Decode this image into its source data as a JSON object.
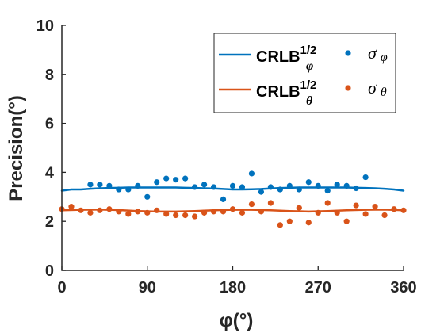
{
  "chart_data": {
    "type": "scatter",
    "xlabel": "φ(°)",
    "ylabel": "Precision(°)",
    "xlim": [
      0,
      360
    ],
    "ylim": [
      0,
      10
    ],
    "x_ticks": [
      0,
      90,
      180,
      270,
      360
    ],
    "y_ticks": [
      0,
      2,
      4,
      6,
      8,
      10
    ],
    "grid": false,
    "legend_position": "top-right",
    "colors": {
      "phi": "#0072BD",
      "theta": "#D95319",
      "axis": "#262626"
    },
    "legend": [
      {
        "kind": "line",
        "base": "CRLB",
        "sup": "1/2",
        "sub": "φ",
        "series": "crlb_phi"
      },
      {
        "kind": "marker",
        "base": "σ",
        "sub": "φ",
        "series": "sigma_phi"
      },
      {
        "kind": "line",
        "base": "CRLB",
        "sup": "1/2",
        "sub": "θ",
        "series": "crlb_theta"
      },
      {
        "kind": "marker",
        "base": "σ",
        "sub": "θ",
        "series": "sigma_theta"
      }
    ],
    "series": {
      "crlb_phi": {
        "style": "line",
        "color": "#0072BD",
        "x": [
          0,
          10,
          20,
          30,
          40,
          50,
          60,
          70,
          80,
          90,
          100,
          110,
          120,
          130,
          140,
          150,
          160,
          170,
          180,
          190,
          200,
          210,
          220,
          230,
          240,
          250,
          260,
          270,
          280,
          290,
          300,
          310,
          320,
          330,
          340,
          350,
          360
        ],
        "y": [
          3.25,
          3.3,
          3.3,
          3.33,
          3.35,
          3.36,
          3.37,
          3.38,
          3.38,
          3.38,
          3.38,
          3.38,
          3.38,
          3.37,
          3.36,
          3.35,
          3.34,
          3.32,
          3.3,
          3.3,
          3.31,
          3.32,
          3.34,
          3.36,
          3.37,
          3.38,
          3.38,
          3.38,
          3.38,
          3.38,
          3.38,
          3.37,
          3.36,
          3.35,
          3.33,
          3.3,
          3.25
        ]
      },
      "sigma_phi": {
        "style": "marker",
        "color": "#0072BD",
        "x": [
          30,
          40,
          50,
          60,
          70,
          80,
          90,
          100,
          110,
          120,
          130,
          140,
          150,
          160,
          170,
          180,
          190,
          200,
          210,
          220,
          230,
          240,
          250,
          260,
          270,
          280,
          290,
          300,
          310,
          320
        ],
        "y": [
          3.5,
          3.5,
          3.45,
          3.3,
          3.3,
          3.45,
          3.0,
          3.6,
          3.75,
          3.7,
          3.75,
          3.4,
          3.5,
          3.4,
          2.9,
          3.45,
          3.4,
          3.95,
          3.2,
          3.4,
          3.3,
          3.45,
          3.3,
          3.6,
          3.45,
          3.25,
          3.5,
          3.45,
          3.35,
          3.8
        ]
      },
      "crlb_theta": {
        "style": "line",
        "color": "#D95319",
        "x": [
          0,
          20,
          40,
          60,
          80,
          100,
          120,
          140,
          160,
          180,
          200,
          220,
          240,
          260,
          280,
          300,
          320,
          340,
          360
        ],
        "y": [
          2.45,
          2.47,
          2.48,
          2.46,
          2.42,
          2.4,
          2.4,
          2.42,
          2.45,
          2.47,
          2.47,
          2.45,
          2.42,
          2.4,
          2.42,
          2.45,
          2.47,
          2.48,
          2.45
        ]
      },
      "sigma_theta": {
        "style": "marker",
        "color": "#D95319",
        "x": [
          0,
          10,
          20,
          30,
          40,
          50,
          60,
          70,
          80,
          90,
          100,
          110,
          120,
          130,
          140,
          150,
          160,
          170,
          180,
          190,
          200,
          210,
          220,
          230,
          240,
          250,
          260,
          270,
          280,
          290,
          300,
          310,
          320,
          330,
          340,
          350,
          360
        ],
        "y": [
          2.5,
          2.6,
          2.45,
          2.35,
          2.45,
          2.5,
          2.4,
          2.3,
          2.4,
          2.35,
          2.45,
          2.3,
          2.25,
          2.25,
          2.2,
          2.35,
          2.4,
          2.4,
          2.5,
          2.35,
          2.7,
          2.4,
          2.75,
          1.85,
          2.0,
          2.55,
          1.95,
          2.35,
          2.75,
          2.35,
          2.0,
          2.65,
          2.3,
          2.6,
          2.25,
          2.5,
          2.45
        ]
      }
    }
  }
}
